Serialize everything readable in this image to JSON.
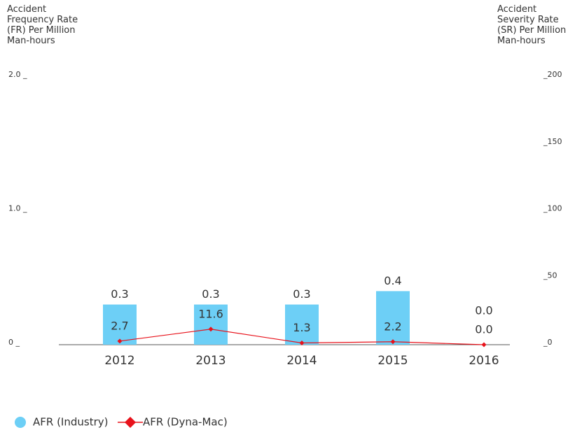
{
  "chart_data": {
    "type": "bar-line",
    "y_label": "Accident\nFrequency Rate\n(FR) Per Million\nMan-hours",
    "y2_label": "Accident\nSeverity Rate\n(SR) Per Million\nMan-hours",
    "categories": [
      "2012",
      "2013",
      "2014",
      "2015",
      "2016"
    ],
    "series": [
      {
        "name": "AFR (Industry)",
        "type": "bar",
        "color": "#6dcff6",
        "values": [
          0.3,
          0.3,
          0.3,
          0.4,
          0.0
        ],
        "value_labels": [
          "0.3",
          "0.3",
          "0.3",
          "0.4",
          "0.0"
        ]
      },
      {
        "name": "AFR (Dyna-Mac)",
        "type": "line",
        "axis": "y2",
        "color": "#e8121b",
        "values": [
          2.7,
          11.6,
          1.3,
          2.2,
          0.0
        ],
        "value_labels": [
          "2.7",
          "11.6",
          "1.3",
          "2.2",
          "0.0"
        ]
      }
    ],
    "ylim": [
      0,
      2
    ],
    "yticks": [
      {
        "value": 0,
        "label": "0 _"
      },
      {
        "value": 1,
        "label": "1.0 _"
      },
      {
        "value": 2,
        "label": "2.0 _"
      }
    ],
    "y2lim": [
      0,
      200
    ],
    "y2ticks": [
      {
        "value": 0,
        "label": "_0"
      },
      {
        "value": 50,
        "label": "_50"
      },
      {
        "value": 100,
        "label": "_100"
      },
      {
        "value": 150,
        "label": "_150"
      },
      {
        "value": 200,
        "label": "_200"
      }
    ],
    "legend": "bottom-left"
  }
}
